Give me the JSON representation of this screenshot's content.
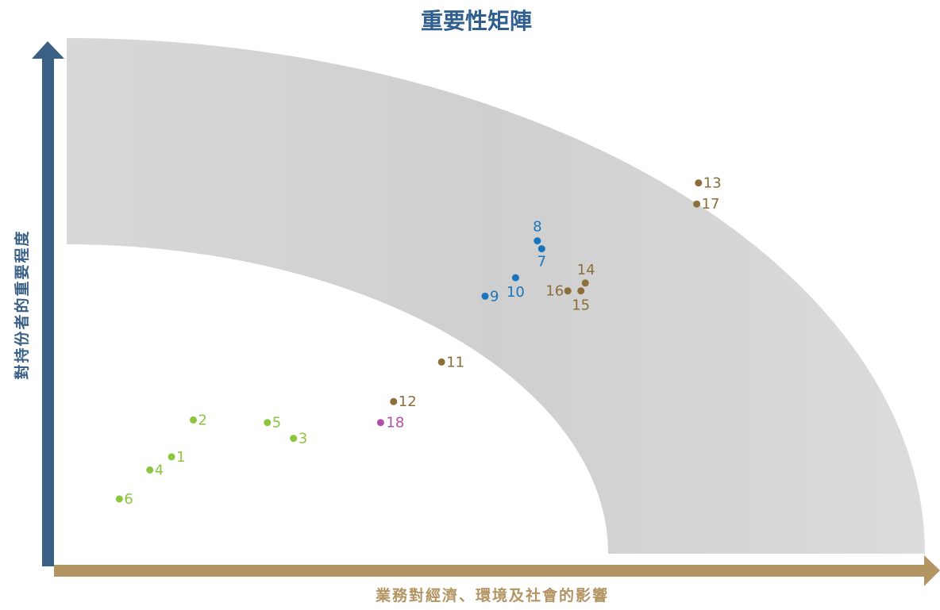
{
  "chart_data": {
    "type": "scatter",
    "title": "重要性矩陣",
    "xlabel": "業務對經濟、環境及社會的影響",
    "ylabel": "對持份者的重要程度",
    "grid": false,
    "colors": {
      "title": "#2f5f8e",
      "y_axis": "#3a6085",
      "x_axis": "#b39463",
      "band": "#d4d4d4",
      "green": "#8cc63f",
      "blue": "#1a75bc",
      "brown": "#8b6e3a",
      "purple": "#b04fa8"
    },
    "points": [
      {
        "label": "1",
        "x": 0.135,
        "y": 0.205,
        "group": "green"
      },
      {
        "label": "2",
        "x": 0.16,
        "y": 0.275,
        "group": "green"
      },
      {
        "label": "3",
        "x": 0.275,
        "y": 0.24,
        "group": "green"
      },
      {
        "label": "4",
        "x": 0.11,
        "y": 0.18,
        "group": "green"
      },
      {
        "label": "5",
        "x": 0.245,
        "y": 0.27,
        "group": "green"
      },
      {
        "label": "6",
        "x": 0.075,
        "y": 0.125,
        "group": "green"
      },
      {
        "label": "7",
        "x": 0.56,
        "y": 0.6,
        "group": "blue"
      },
      {
        "label": "8",
        "x": 0.555,
        "y": 0.615,
        "group": "blue"
      },
      {
        "label": "9",
        "x": 0.495,
        "y": 0.51,
        "group": "blue"
      },
      {
        "label": "10",
        "x": 0.53,
        "y": 0.545,
        "group": "blue"
      },
      {
        "label": "11",
        "x": 0.445,
        "y": 0.385,
        "group": "brown"
      },
      {
        "label": "12",
        "x": 0.39,
        "y": 0.31,
        "group": "brown"
      },
      {
        "label": "13",
        "x": 0.74,
        "y": 0.725,
        "group": "brown"
      },
      {
        "label": "14",
        "x": 0.61,
        "y": 0.535,
        "group": "brown"
      },
      {
        "label": "15",
        "x": 0.605,
        "y": 0.52,
        "group": "brown"
      },
      {
        "label": "16",
        "x": 0.59,
        "y": 0.52,
        "group": "brown"
      },
      {
        "label": "17",
        "x": 0.738,
        "y": 0.685,
        "group": "brown"
      },
      {
        "label": "18",
        "x": 0.375,
        "y": 0.27,
        "group": "purple"
      }
    ]
  }
}
